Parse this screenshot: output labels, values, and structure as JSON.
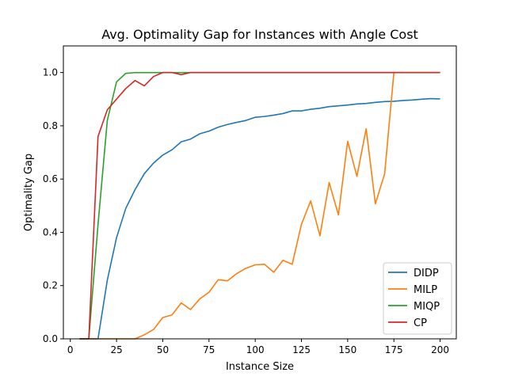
{
  "chart_data": {
    "type": "line",
    "title": "Avg. Optimality Gap for Instances with Angle Cost",
    "xlabel": "Instance Size",
    "ylabel": "Optimality Gap",
    "xlim": [
      -3.75,
      208.75
    ],
    "ylim": [
      0,
      1.1
    ],
    "xticks": [
      0,
      25,
      50,
      75,
      100,
      125,
      150,
      175,
      200
    ],
    "xtick_labels": [
      "0",
      "25",
      "50",
      "75",
      "100",
      "125",
      "150",
      "175",
      "200"
    ],
    "yticks": [
      0.0,
      0.2,
      0.4,
      0.6,
      0.8,
      1.0
    ],
    "ytick_labels": [
      "0.0",
      "0.2",
      "0.4",
      "0.6",
      "0.8",
      "1.0"
    ],
    "grid": false,
    "legend_position": "lower-right",
    "series": [
      {
        "name": "DIDP",
        "color": "#1f77b4",
        "x": [
          5,
          10,
          15,
          20,
          25,
          30,
          35,
          40,
          45,
          50,
          55,
          60,
          65,
          70,
          75,
          80,
          85,
          90,
          95,
          100,
          105,
          110,
          115,
          120,
          125,
          130,
          135,
          140,
          145,
          150,
          155,
          160,
          165,
          170,
          175,
          180,
          185,
          190,
          195,
          200
        ],
        "y": [
          0,
          0,
          0,
          0.22,
          0.38,
          0.49,
          0.56,
          0.62,
          0.66,
          0.69,
          0.71,
          0.74,
          0.75,
          0.77,
          0.78,
          0.795,
          0.805,
          0.813,
          0.82,
          0.832,
          0.835,
          0.84,
          0.846,
          0.856,
          0.856,
          0.862,
          0.866,
          0.872,
          0.875,
          0.878,
          0.882,
          0.884,
          0.888,
          0.891,
          0.892,
          0.895,
          0.897,
          0.9,
          0.902,
          0.901
        ]
      },
      {
        "name": "MILP",
        "color": "#ff7f0e",
        "x": [
          5,
          10,
          15,
          20,
          25,
          30,
          35,
          40,
          45,
          50,
          55,
          60,
          65,
          70,
          75,
          80,
          85,
          90,
          95,
          100,
          105,
          110,
          115,
          120,
          125,
          130,
          135,
          140,
          145,
          150,
          155,
          160,
          165,
          170,
          175,
          180,
          185,
          190,
          195,
          200
        ],
        "y": [
          0,
          0,
          0,
          0,
          0,
          0,
          0,
          0.015,
          0.035,
          0.08,
          0.09,
          0.135,
          0.11,
          0.15,
          0.175,
          0.222,
          0.218,
          0.245,
          0.265,
          0.278,
          0.28,
          0.25,
          0.295,
          0.28,
          0.43,
          0.518,
          0.387,
          0.587,
          0.465,
          0.742,
          0.61,
          0.789,
          0.507,
          0.62,
          1.0,
          1.0,
          1.0,
          1.0,
          1.0,
          1.0
        ]
      },
      {
        "name": "MIQP",
        "color": "#2ca02c",
        "x": [
          5,
          10,
          15,
          20,
          25,
          30,
          35,
          40,
          45,
          50,
          55,
          60,
          65,
          70,
          75,
          80,
          85,
          90,
          95,
          100,
          105,
          110,
          115,
          120,
          125,
          130,
          135,
          140,
          145,
          150,
          155,
          160,
          165,
          170,
          175,
          180,
          185,
          190,
          195,
          200
        ],
        "y": [
          0,
          0,
          0.43,
          0.82,
          0.965,
          0.997,
          1.0,
          1.0,
          1.0,
          1.0,
          1.0,
          1.0,
          1.0,
          1.0,
          1.0,
          1.0,
          1.0,
          1.0,
          1.0,
          1.0,
          1.0,
          1.0,
          1.0,
          1.0,
          1.0,
          1.0,
          1.0,
          1.0,
          1.0,
          1.0,
          1.0,
          1.0,
          1.0,
          1.0,
          1.0,
          1.0,
          1.0,
          1.0,
          1.0,
          1.0
        ]
      },
      {
        "name": "CP",
        "color": "#d62728",
        "x": [
          5,
          10,
          15,
          20,
          25,
          30,
          35,
          40,
          45,
          50,
          55,
          60,
          65,
          70,
          75,
          80,
          85,
          90,
          95,
          100,
          105,
          110,
          115,
          120,
          125,
          130,
          135,
          140,
          145,
          150,
          155,
          160,
          165,
          170,
          175,
          180,
          185,
          190,
          195,
          200
        ],
        "y": [
          0,
          0,
          0.76,
          0.86,
          0.9,
          0.94,
          0.97,
          0.95,
          0.985,
          1.0,
          1.0,
          0.992,
          1.0,
          1.0,
          1.0,
          1.0,
          1.0,
          1.0,
          1.0,
          1.0,
          1.0,
          1.0,
          1.0,
          1.0,
          1.0,
          1.0,
          1.0,
          1.0,
          1.0,
          1.0,
          1.0,
          1.0,
          1.0,
          1.0,
          1.0,
          1.0,
          1.0,
          1.0,
          1.0,
          1.0
        ]
      }
    ]
  }
}
